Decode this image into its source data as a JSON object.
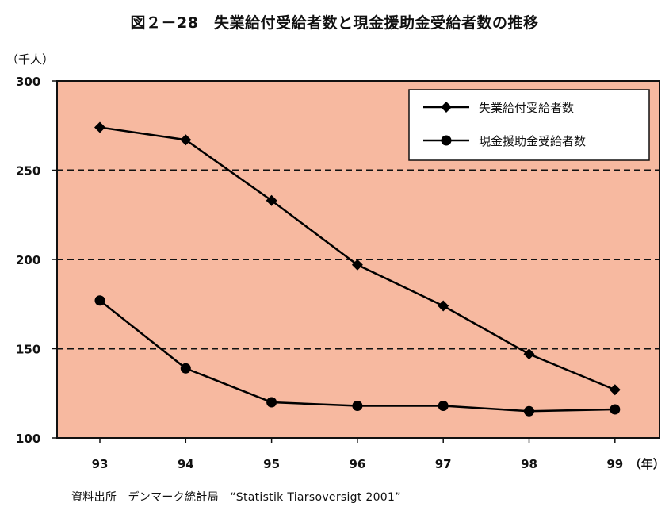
{
  "chart_data": {
    "type": "line",
    "title": "図２－28　失業給付受給者数と現金援助金受給者数の推移",
    "y_unit": "（千人）",
    "x_unit": "（年）",
    "x": [
      "93",
      "94",
      "95",
      "96",
      "97",
      "98",
      "99"
    ],
    "ylim": [
      100,
      300
    ],
    "yticks": [
      100,
      150,
      200,
      250,
      300
    ],
    "grid": "dashed horizontal",
    "legend_position": "top-right",
    "plot_background": "#f7b9a0",
    "series": [
      {
        "name": "失業給付受給者数",
        "marker": "diamond",
        "color": "#000000",
        "values": [
          274,
          267,
          233,
          197,
          174,
          147,
          127
        ]
      },
      {
        "name": "現金援助金受給者数",
        "marker": "circle",
        "color": "#000000",
        "values": [
          177,
          139,
          120,
          118,
          118,
          115,
          116
        ]
      }
    ],
    "source": "資料出所　デンマーク統計局　“Statistik Tiarsoversigt 2001”"
  }
}
